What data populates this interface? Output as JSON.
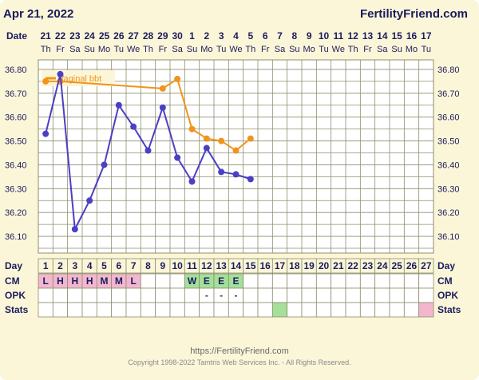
{
  "header": {
    "date": "Apr 21, 2022",
    "brand": "FertilityFriend.com"
  },
  "row_labels": {
    "date": "Date",
    "day": "Day",
    "cm": "CM",
    "opk": "OPK",
    "stats": "Stats"
  },
  "dates": [
    "21",
    "22",
    "23",
    "24",
    "25",
    "26",
    "27",
    "28",
    "29",
    "30",
    "1",
    "2",
    "3",
    "4",
    "5",
    "6",
    "7",
    "8",
    "9",
    "10",
    "11",
    "12",
    "13",
    "14",
    "15",
    "16",
    "17"
  ],
  "weekdays": [
    "Th",
    "Fr",
    "Sa",
    "Su",
    "Mo",
    "Tu",
    "We",
    "Th",
    "Fr",
    "Sa",
    "Su",
    "Mo",
    "Tu",
    "We",
    "Th",
    "Fr",
    "Sa",
    "Su",
    "Mo",
    "Tu",
    "We",
    "Th",
    "Fr",
    "Sa",
    "Su",
    "Mo",
    "Tu"
  ],
  "cycle_days": [
    "1",
    "2",
    "3",
    "4",
    "5",
    "6",
    "7",
    "8",
    "9",
    "10",
    "11",
    "12",
    "13",
    "14",
    "15",
    "16",
    "17",
    "18",
    "19",
    "20",
    "21",
    "22",
    "23",
    "24",
    "25",
    "26",
    "27"
  ],
  "cm": [
    "L",
    "H",
    "H",
    "H",
    "M",
    "M",
    "L",
    "",
    "",
    "",
    "W",
    "E",
    "E",
    "E",
    "",
    "",
    "",
    "",
    "",
    "",
    "",
    "",
    "",
    "",
    "",
    "",
    ""
  ],
  "opk": [
    "",
    "",
    "",
    "",
    "",
    "",
    "",
    "",
    "",
    "",
    "",
    "-",
    "-",
    "-",
    "",
    "",
    "",
    "",
    "",
    "",
    "",
    "",
    "",
    "",
    "",
    "",
    ""
  ],
  "stats_highlights": [
    {
      "day": 17,
      "color": "#a4e09a"
    },
    {
      "day": 27,
      "color": "#f2b7cf"
    }
  ],
  "colors": {
    "background": "#fbf6d8",
    "grid": "#8d8d6e",
    "cell_fill": "#ffffff",
    "series_main": "#4b3fc4",
    "series_vaginal": "#f0941c",
    "cm_pink": "#f2b7cf",
    "cm_green": "#a4e09a",
    "text": "#1b1b5e",
    "footer_text": "#6a6a6a"
  },
  "chart_data": {
    "type": "line",
    "ylim": [
      36.03,
      36.84
    ],
    "y_ticks": [
      "36.80",
      "36.70",
      "36.60",
      "36.50",
      "36.40",
      "36.30",
      "36.20",
      "36.10"
    ],
    "legend": {
      "label": "Vaginal bbt",
      "placement": "top-left"
    },
    "series": [
      {
        "role": "main",
        "days": [
          1,
          2,
          3,
          4,
          5,
          6,
          7,
          8,
          9,
          10,
          11,
          12,
          13,
          14,
          15
        ],
        "values": [
          36.53,
          36.78,
          36.13,
          36.25,
          36.4,
          36.65,
          36.56,
          36.46,
          36.64,
          36.43,
          36.33,
          36.47,
          36.37,
          36.36,
          36.34
        ]
      },
      {
        "name": "Vaginal bbt",
        "role": "vaginal",
        "days": [
          1,
          2,
          9,
          10,
          11,
          12,
          13,
          14,
          15
        ],
        "values": [
          36.75,
          36.75,
          36.72,
          36.76,
          36.55,
          36.51,
          36.5,
          36.46,
          36.51
        ]
      }
    ]
  },
  "footer": {
    "url": "https://FertilityFriend.com",
    "copyright": "Copyright 1998-2022 Tamtris Web Services Inc. - All Rights Reserved."
  }
}
